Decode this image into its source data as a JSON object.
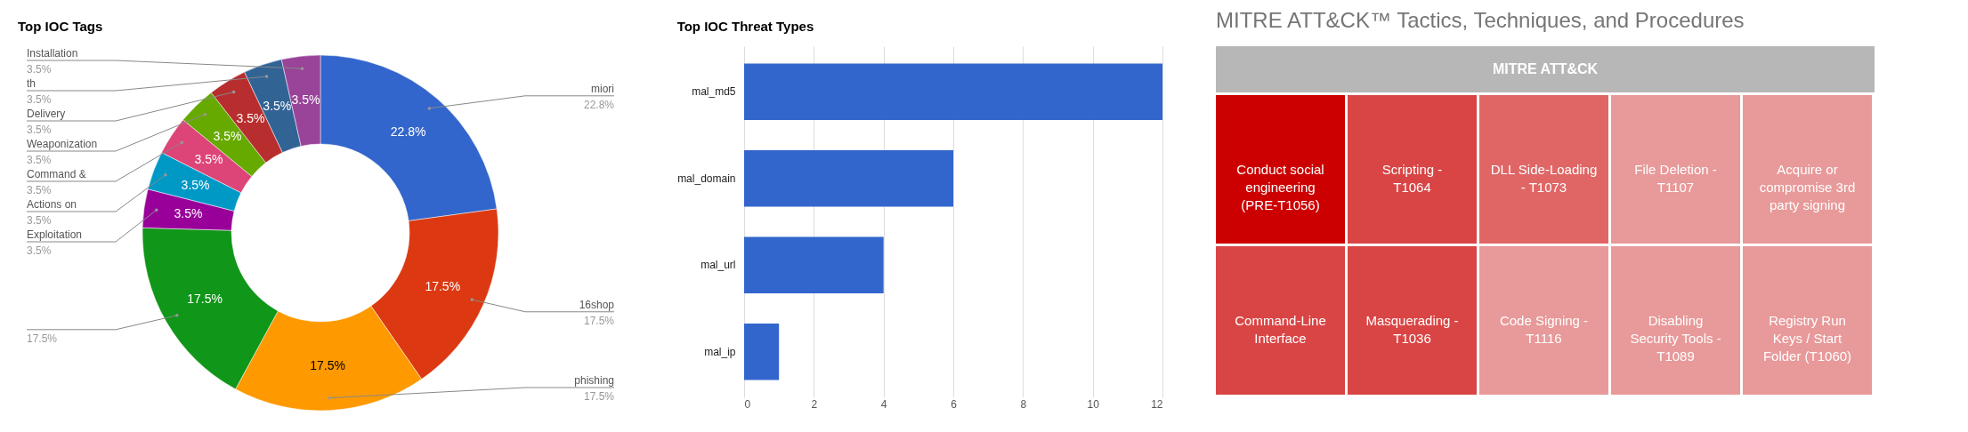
{
  "chart_data": [
    {
      "type": "donut",
      "title": "Top IOC Tags",
      "categories": [
        "miori",
        "16shop",
        "phishing",
        null,
        "Exploitation",
        "Actions on",
        "Command &",
        "Weaponization",
        "Delivery",
        "th",
        "Installation"
      ],
      "values": [
        22.8,
        17.5,
        17.5,
        17.5,
        3.5,
        3.5,
        3.5,
        3.5,
        3.5,
        3.5,
        3.5
      ],
      "value_labels": [
        "22.8%",
        "17.5%",
        "17.5%",
        "17.5%",
        "3.5%",
        "3.5%",
        "3.5%",
        "3.5%",
        "3.5%",
        "3.5%",
        "3.5%"
      ],
      "colors": [
        "#3366cc",
        "#dc3912",
        "#ff9900",
        "#109618",
        "#990099",
        "#0099c6",
        "#dd4477",
        "#66aa00",
        "#b82e2e",
        "#316395",
        "#994499"
      ]
    },
    {
      "type": "bar",
      "title": "Top IOC Threat Types",
      "orientation": "horizontal",
      "categories": [
        "mal_md5",
        "mal_domain",
        "mal_url",
        "mal_ip"
      ],
      "values": [
        12,
        6,
        4,
        1
      ],
      "color": "#3366cc",
      "xlim": [
        0,
        12
      ],
      "xticks": [
        0,
        2,
        4,
        6,
        8,
        10,
        12
      ],
      "grid": "x"
    },
    {
      "type": "other",
      "title": "MITRE ATT&CK™ Tactics, Techniques, and Procedures",
      "annotations": [
        "MITRE ATT&CK"
      ],
      "categories": [
        "Conduct social engineering (PRE-T1056)",
        "Command-Line Interface",
        "Scripting - T1064",
        "Masquerading - T1036",
        "DLL Side-Loading - T1073",
        "Code Signing - T1116",
        "File Deletion - T1107",
        "Disabling Security Tools - T1089",
        "Acquire or compromise 3rd party signing",
        "Registry Run Keys / Start Folder (T1060)"
      ],
      "colors": [
        "#cc0000",
        "#d94545",
        "#d94545",
        "#d94545",
        "#e06666",
        "#e89999",
        "#e89999",
        "#e89999",
        "#e89999",
        "#e89999"
      ]
    }
  ]
}
